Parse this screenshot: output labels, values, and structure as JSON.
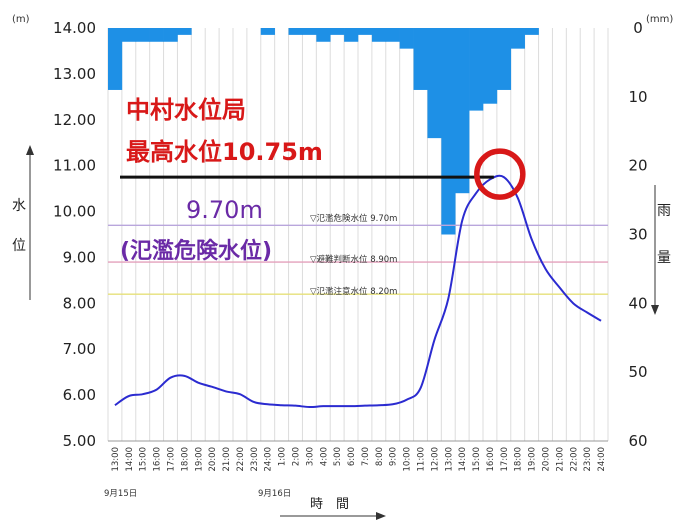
{
  "chart_data": {
    "type": "bar+line",
    "categories": [
      "13:00",
      "14:00",
      "15:00",
      "16:00",
      "17:00",
      "18:00",
      "19:00",
      "20:00",
      "21:00",
      "22:00",
      "23:00",
      "24:00",
      "1:00",
      "2:00",
      "3:00",
      "4:00",
      "5:00",
      "6:00",
      "7:00",
      "8:00",
      "9:00",
      "10:00",
      "11:00",
      "12:00",
      "13:00",
      "14:00",
      "15:00",
      "16:00",
      "17:00",
      "18:00",
      "19:00",
      "20:00",
      "21:00",
      "22:00",
      "23:00",
      "24:00"
    ],
    "dates": [
      {
        "label": "9月15日",
        "at_index": 0
      },
      {
        "label": "9月16日",
        "at_index": 12
      }
    ],
    "water_level": {
      "color": "#2b2bd0",
      "values": [
        5.78,
        5.98,
        6.02,
        6.12,
        6.38,
        6.42,
        6.27,
        6.18,
        6.08,
        6.02,
        5.85,
        5.8,
        5.78,
        5.77,
        5.74,
        5.76,
        5.76,
        5.76,
        5.77,
        5.78,
        5.8,
        5.9,
        6.15,
        7.2,
        8.1,
        9.8,
        10.4,
        10.7,
        10.75,
        10.3,
        9.4,
        8.75,
        8.35,
        8.0,
        7.8,
        7.62
      ]
    },
    "rainfall": {
      "color": "#1e90e6",
      "values": [
        9,
        2,
        2,
        2,
        2,
        1,
        0,
        0,
        0,
        0,
        0,
        1,
        0,
        1,
        1,
        2,
        1,
        2,
        1,
        2,
        2,
        3,
        9,
        16,
        30,
        24,
        12,
        11,
        9,
        3,
        1,
        0,
        0,
        0,
        0,
        0
      ]
    },
    "left_axis": {
      "label_chars": [
        "水",
        "位"
      ],
      "unit": "(m)",
      "range": [
        5,
        14
      ],
      "ticks": [
        "5.00",
        "6.00",
        "7.00",
        "8.00",
        "9.00",
        "10.00",
        "11.00",
        "12.00",
        "13.00",
        "14.00"
      ]
    },
    "right_axis": {
      "label_chars": [
        "雨",
        "量"
      ],
      "unit": "(mm)",
      "range_inverted": [
        0,
        60
      ],
      "ticks": [
        "0",
        "10",
        "20",
        "30",
        "40",
        "50",
        "60"
      ]
    },
    "x_axis_title": "時　間",
    "grid": "vertical",
    "reference_lines": [
      {
        "label": "▽氾濫危険水位 9.70m",
        "value": 9.7,
        "color": "#b9a6dc"
      },
      {
        "label": "▽避難判断水位 8.90m",
        "value": 8.9,
        "color": "#e4a0bc"
      },
      {
        "label": "▽氾濫注意水位 8.20m",
        "value": 8.2,
        "color": "#e6e07a"
      }
    ],
    "annotations": {
      "station_line1": "中村水位局",
      "station_line2": "最高水位10.75m",
      "max_value": 10.75,
      "danger_value_text": "9.70m",
      "danger_label": "(氾濫危険水位)",
      "red_color": "#d81818",
      "purple_color": "#6a2aa6"
    }
  }
}
